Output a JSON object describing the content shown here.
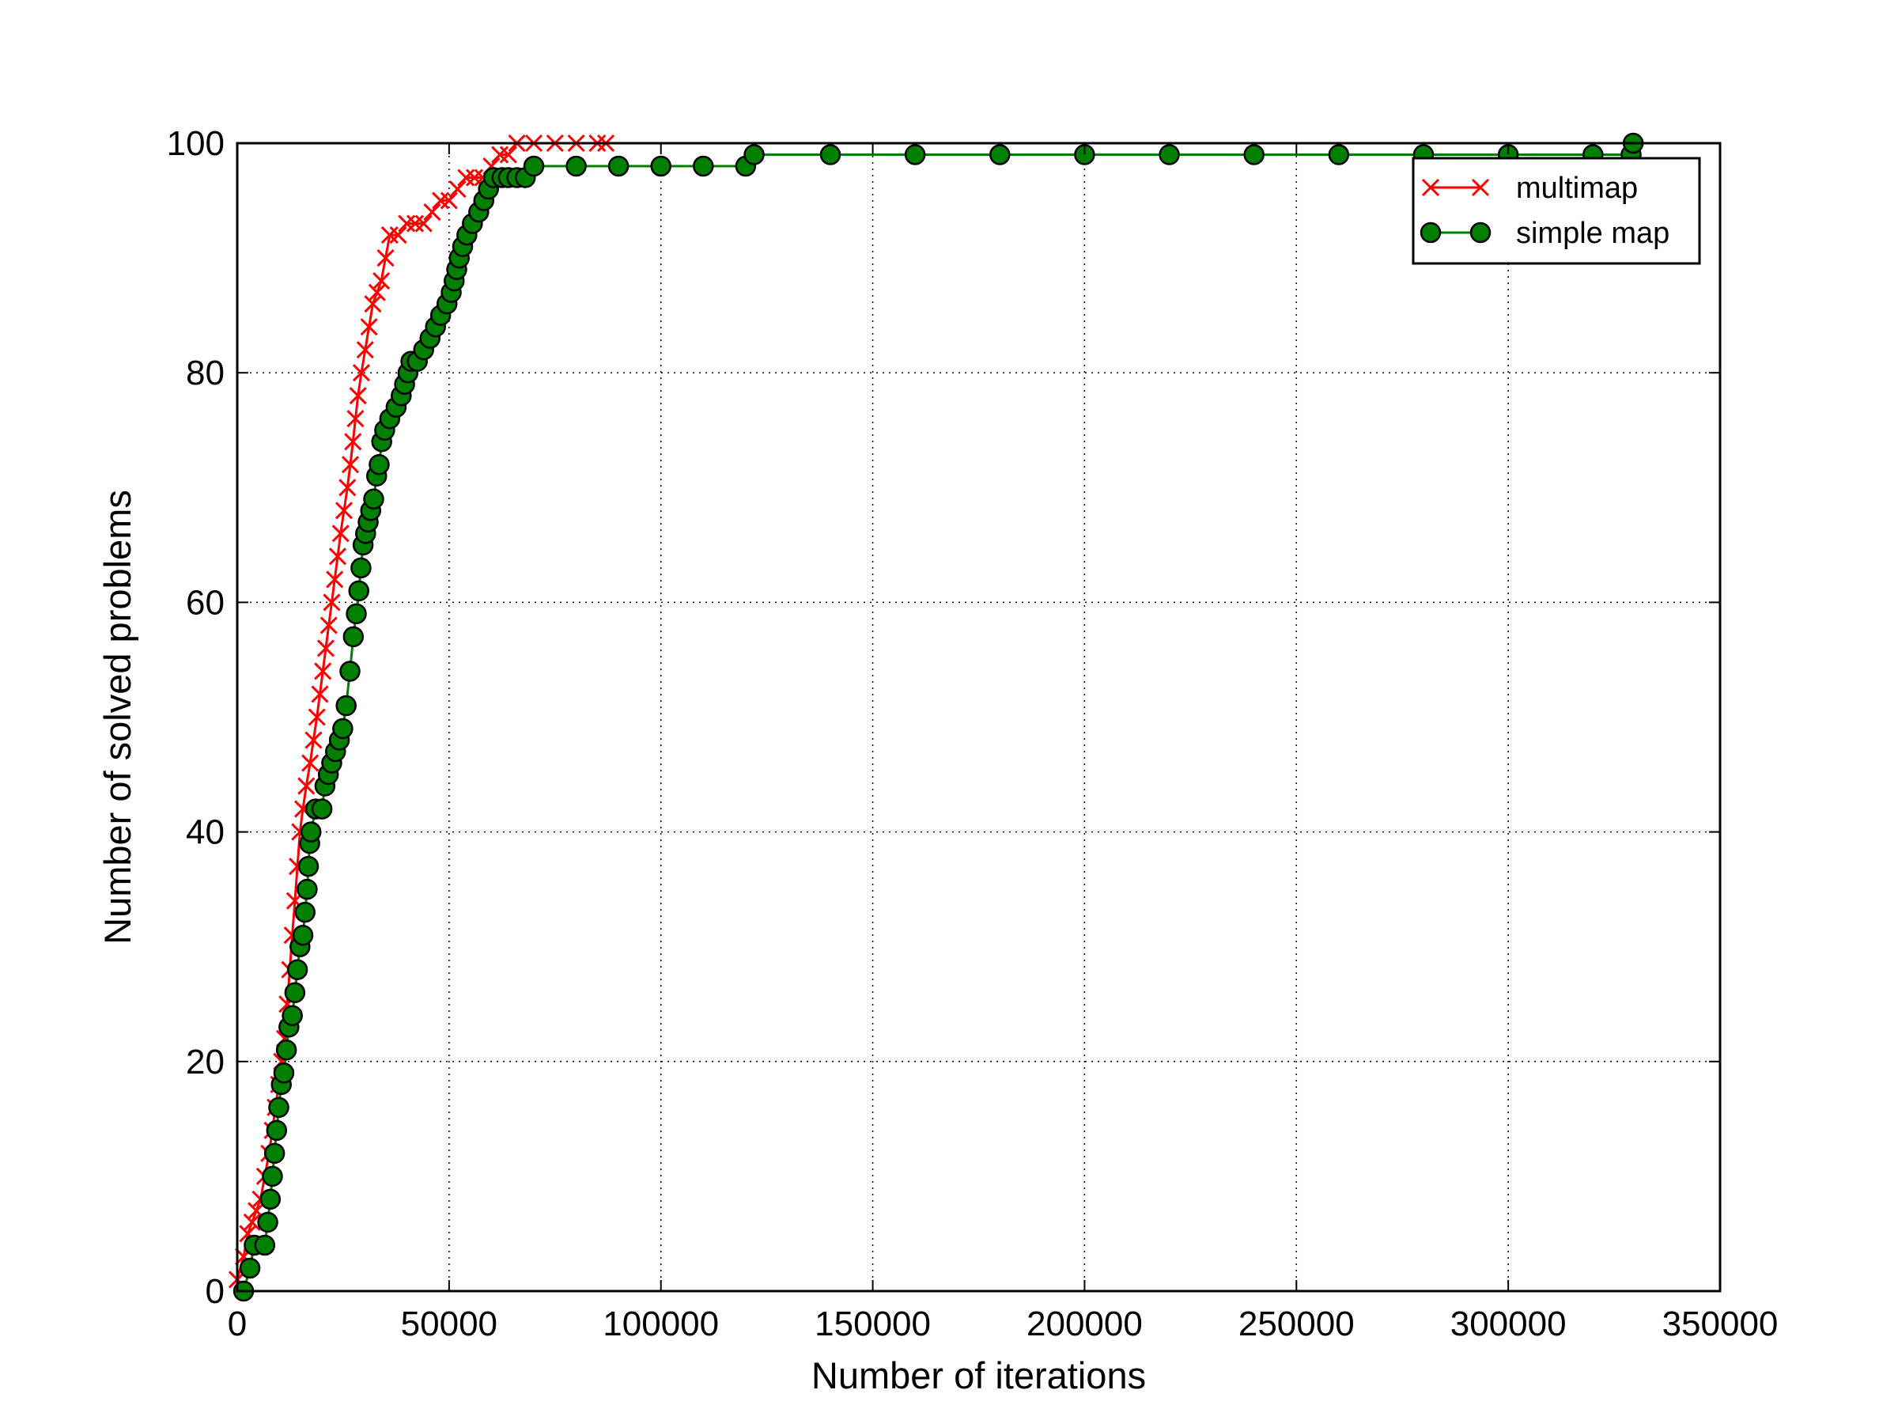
{
  "chart_data": {
    "type": "line",
    "title": "",
    "xlabel": "Number of iterations",
    "ylabel": "Number of solved problems",
    "xlim": [
      0,
      350000
    ],
    "ylim": [
      0,
      100
    ],
    "xticks": [
      0,
      50000,
      100000,
      150000,
      200000,
      250000,
      300000,
      350000
    ],
    "yticks": [
      0,
      20,
      40,
      60,
      80,
      100
    ],
    "grid": true,
    "legend_position": "top-right",
    "series": [
      {
        "name": "multimap",
        "color": "#ff0000",
        "marker": "x",
        "points": [
          [
            0,
            1
          ],
          [
            1500,
            3
          ],
          [
            2500,
            5
          ],
          [
            3500,
            6
          ],
          [
            4500,
            7
          ],
          [
            5500,
            8
          ],
          [
            6500,
            10
          ],
          [
            7500,
            12
          ],
          [
            8300,
            14
          ],
          [
            9000,
            16
          ],
          [
            9800,
            18
          ],
          [
            10500,
            20
          ],
          [
            11200,
            22
          ],
          [
            11800,
            25
          ],
          [
            12400,
            28
          ],
          [
            13000,
            31
          ],
          [
            13600,
            34
          ],
          [
            14200,
            37
          ],
          [
            14800,
            40
          ],
          [
            15500,
            42
          ],
          [
            16300,
            44
          ],
          [
            17200,
            46
          ],
          [
            18000,
            48
          ],
          [
            18800,
            50
          ],
          [
            19500,
            52
          ],
          [
            20200,
            54
          ],
          [
            20900,
            56
          ],
          [
            21600,
            58
          ],
          [
            22300,
            60
          ],
          [
            23000,
            62
          ],
          [
            23700,
            64
          ],
          [
            24400,
            66
          ],
          [
            25200,
            68
          ],
          [
            26000,
            70
          ],
          [
            26700,
            72
          ],
          [
            27300,
            74
          ],
          [
            27900,
            76
          ],
          [
            28500,
            78
          ],
          [
            29300,
            80
          ],
          [
            30200,
            82
          ],
          [
            31100,
            84
          ],
          [
            32000,
            86
          ],
          [
            33000,
            87
          ],
          [
            34000,
            88
          ],
          [
            35000,
            90
          ],
          [
            36000,
            92
          ],
          [
            38000,
            92
          ],
          [
            40000,
            93
          ],
          [
            42000,
            93
          ],
          [
            44000,
            93
          ],
          [
            46000,
            94
          ],
          [
            48000,
            95
          ],
          [
            50000,
            95
          ],
          [
            52000,
            96
          ],
          [
            54000,
            97
          ],
          [
            56000,
            97
          ],
          [
            58000,
            97
          ],
          [
            60000,
            98
          ],
          [
            62000,
            99
          ],
          [
            64000,
            99
          ],
          [
            66000,
            100
          ],
          [
            70000,
            100
          ],
          [
            75000,
            100
          ],
          [
            80000,
            100
          ],
          [
            85000,
            100
          ],
          [
            87000,
            100
          ]
        ]
      },
      {
        "name": "simple map",
        "color": "#007f00",
        "marker": "o",
        "points": [
          [
            1500,
            0
          ],
          [
            3000,
            2
          ],
          [
            4000,
            4
          ],
          [
            6500,
            4
          ],
          [
            7200,
            6
          ],
          [
            7800,
            8
          ],
          [
            8300,
            10
          ],
          [
            8800,
            12
          ],
          [
            9300,
            14
          ],
          [
            9800,
            16
          ],
          [
            10400,
            18
          ],
          [
            11000,
            19
          ],
          [
            11600,
            21
          ],
          [
            12200,
            23
          ],
          [
            13000,
            24
          ],
          [
            13600,
            26
          ],
          [
            14200,
            28
          ],
          [
            14800,
            30
          ],
          [
            15500,
            31
          ],
          [
            16000,
            33
          ],
          [
            16500,
            35
          ],
          [
            16800,
            37
          ],
          [
            17100,
            39
          ],
          [
            17400,
            40
          ],
          [
            18500,
            42
          ],
          [
            20000,
            42
          ],
          [
            20700,
            44
          ],
          [
            21500,
            45
          ],
          [
            22300,
            46
          ],
          [
            23200,
            47
          ],
          [
            24100,
            48
          ],
          [
            24900,
            49
          ],
          [
            25700,
            51
          ],
          [
            26600,
            54
          ],
          [
            27400,
            57
          ],
          [
            28100,
            59
          ],
          [
            28700,
            61
          ],
          [
            29200,
            63
          ],
          [
            29700,
            65
          ],
          [
            30300,
            66
          ],
          [
            30900,
            67
          ],
          [
            31500,
            68
          ],
          [
            32200,
            69
          ],
          [
            32900,
            71
          ],
          [
            33500,
            72
          ],
          [
            34100,
            74
          ],
          [
            34800,
            75
          ],
          [
            36000,
            76
          ],
          [
            37500,
            77
          ],
          [
            38700,
            78
          ],
          [
            39500,
            79
          ],
          [
            40300,
            80
          ],
          [
            41000,
            81
          ],
          [
            42500,
            81
          ],
          [
            44000,
            82
          ],
          [
            45500,
            83
          ],
          [
            46800,
            84
          ],
          [
            48000,
            85
          ],
          [
            49500,
            86
          ],
          [
            50500,
            87
          ],
          [
            51200,
            88
          ],
          [
            51800,
            89
          ],
          [
            52400,
            90
          ],
          [
            53200,
            91
          ],
          [
            54200,
            92
          ],
          [
            55500,
            93
          ],
          [
            57000,
            94
          ],
          [
            58200,
            95
          ],
          [
            59300,
            96
          ],
          [
            60500,
            97
          ],
          [
            62500,
            97
          ],
          [
            64000,
            97
          ],
          [
            66000,
            97
          ],
          [
            68000,
            97
          ],
          [
            70000,
            98
          ],
          [
            80000,
            98
          ],
          [
            90000,
            98
          ],
          [
            100000,
            98
          ],
          [
            110000,
            98
          ],
          [
            120000,
            98
          ],
          [
            122000,
            99
          ],
          [
            140000,
            99
          ],
          [
            160000,
            99
          ],
          [
            180000,
            99
          ],
          [
            200000,
            99
          ],
          [
            220000,
            99
          ],
          [
            240000,
            99
          ],
          [
            260000,
            99
          ],
          [
            280000,
            99
          ],
          [
            300000,
            99
          ],
          [
            320000,
            99
          ],
          [
            329000,
            99
          ],
          [
            329500,
            100
          ]
        ]
      }
    ]
  }
}
